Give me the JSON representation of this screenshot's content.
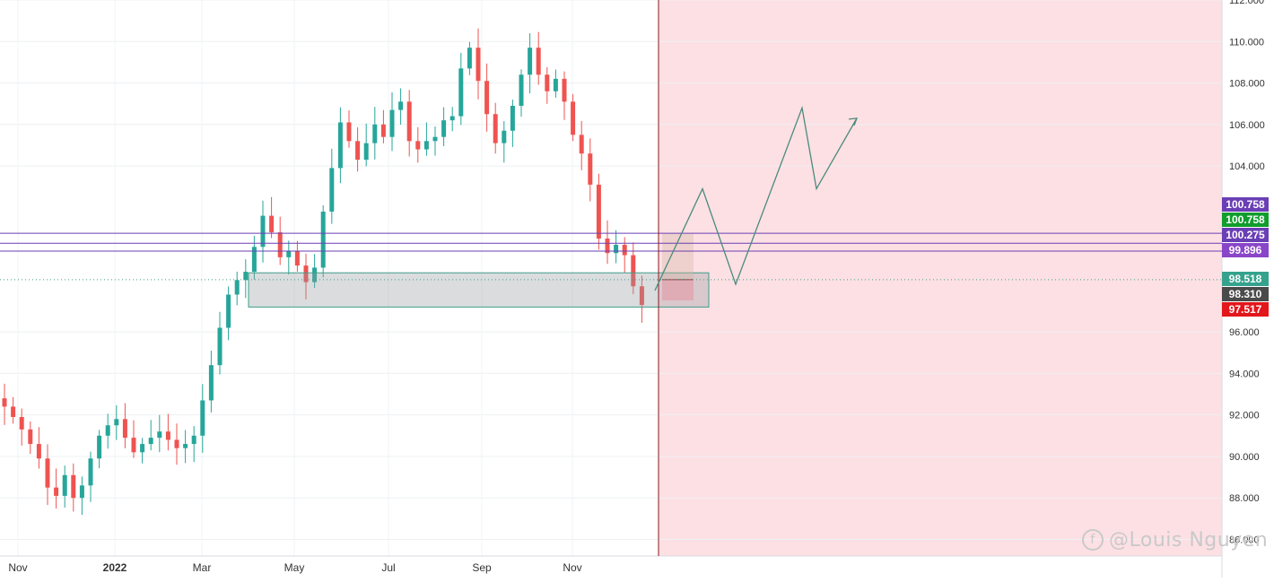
{
  "chart_data": {
    "type": "candlestick",
    "title": "",
    "xlabel": "",
    "ylabel": "",
    "x_tick_labels": [
      "Nov",
      "2022",
      "Mar",
      "May",
      "Jul",
      "Sep",
      "Nov"
    ],
    "y_tick_labels": [
      "112.000",
      "110.000",
      "108.000",
      "106.000",
      "104.000",
      "100.758",
      "100.275",
      "99.896",
      "98.518",
      "98.310",
      "97.517",
      "96.000",
      "94.000",
      "92.000",
      "90.000",
      "88.000",
      "86.000"
    ],
    "ylim": [
      85.2,
      112.0
    ],
    "grid": true,
    "colors": {
      "up": "#26a69a",
      "down": "#ef5350",
      "forecast_zone": "#fde0e4",
      "cutoff_line": "#8b1a1a",
      "level_line": "#6a3fb5",
      "projection": "#4a8a7c"
    },
    "price_path_weekly_close": [
      92.4,
      91.9,
      91.3,
      90.6,
      89.9,
      88.5,
      88.1,
      89.1,
      88.0,
      88.6,
      89.9,
      91.0,
      91.5,
      91.8,
      90.9,
      90.2,
      90.6,
      90.9,
      91.2,
      90.8,
      90.4,
      90.6,
      91.0,
      92.7,
      94.4,
      96.2,
      97.8,
      98.5,
      98.9,
      100.1,
      101.6,
      100.8,
      99.6,
      99.9,
      99.2,
      98.4,
      99.1,
      101.8,
      103.9,
      106.1,
      105.2,
      104.3,
      105.1,
      106.0,
      105.4,
      106.7,
      107.1,
      105.2,
      104.8,
      105.2,
      105.4,
      106.2,
      106.4,
      108.7,
      109.7,
      108.1,
      106.5,
      105.1,
      105.7,
      106.9,
      108.4,
      109.7,
      108.4,
      107.6,
      108.2,
      107.1,
      105.5,
      104.6,
      103.1,
      100.5,
      99.8,
      100.2,
      99.7,
      98.2,
      97.3
    ],
    "price_levels": [
      {
        "value": 100.758,
        "label": "100.758",
        "color": "#6a3fb5"
      },
      {
        "value": 100.758,
        "label": "100.758",
        "color": "#119d2d"
      },
      {
        "value": 100.275,
        "label": "100.275",
        "color": "#6a3fb5"
      },
      {
        "value": 99.896,
        "label": "99.896",
        "color": "#8a46c8"
      },
      {
        "value": 98.518,
        "label": "98.518",
        "color": "#35a28d"
      },
      {
        "value": 98.31,
        "label": "98.310",
        "color": "#4a4a4a"
      },
      {
        "value": 97.517,
        "label": "97.517",
        "color": "#e3161b"
      }
    ],
    "support_zone": {
      "top": 98.85,
      "bottom": 97.2
    },
    "projection_path": [
      98.0,
      102.9,
      98.3,
      106.8,
      102.9,
      106.3
    ],
    "watermark": "@Louis Nguyen"
  }
}
